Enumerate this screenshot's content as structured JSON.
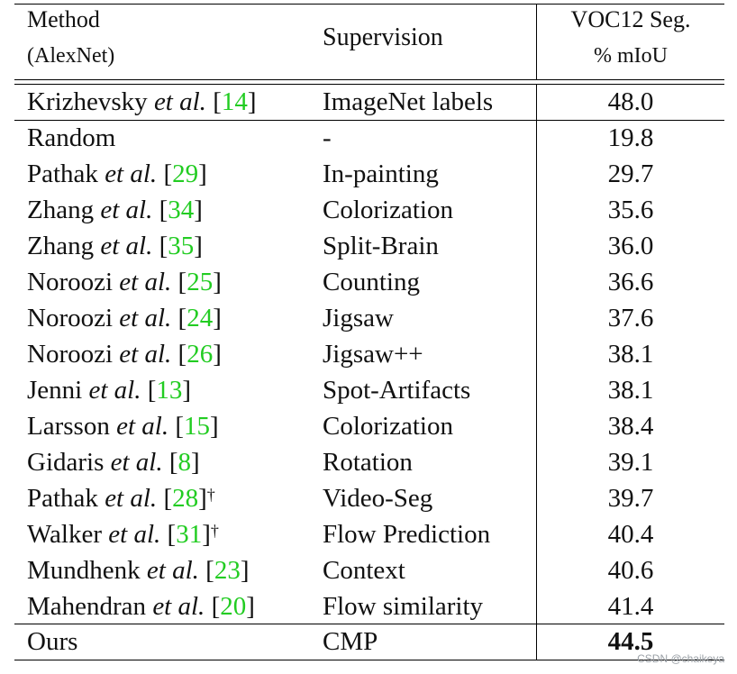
{
  "header": {
    "method": "Method",
    "method_sub": "(AlexNet)",
    "supervision": "Supervision",
    "voc_line1": "VOC12 Seg.",
    "voc_line2": "% mIoU"
  },
  "baseline": {
    "author": "Krizhevsky",
    "etal": "et al.",
    "ref": "14",
    "supervision": "ImageNet labels",
    "miou": "48.0"
  },
  "random_row": {
    "method": "Random",
    "supervision": "-",
    "miou": "19.8"
  },
  "rows": [
    {
      "author": "Pathak",
      "etal": "et al.",
      "ref": "29",
      "dagger": "",
      "supervision": "In-painting",
      "miou": "29.7"
    },
    {
      "author": "Zhang",
      "etal": "et al.",
      "ref": "34",
      "dagger": "",
      "supervision": "Colorization",
      "miou": "35.6"
    },
    {
      "author": "Zhang",
      "etal": "et al.",
      "ref": "35",
      "dagger": "",
      "supervision": "Split-Brain",
      "miou": "36.0"
    },
    {
      "author": "Noroozi",
      "etal": "et al.",
      "ref": "25",
      "dagger": "",
      "supervision": "Counting",
      "miou": "36.6"
    },
    {
      "author": "Noroozi",
      "etal": "et al.",
      "ref": "24",
      "dagger": "",
      "supervision": "Jigsaw",
      "miou": "37.6"
    },
    {
      "author": "Noroozi",
      "etal": "et al.",
      "ref": "26",
      "dagger": "",
      "supervision": "Jigsaw++",
      "miou": "38.1"
    },
    {
      "author": "Jenni",
      "etal": "et al.",
      "ref": "13",
      "dagger": "",
      "supervision": "Spot-Artifacts",
      "miou": "38.1"
    },
    {
      "author": "Larsson",
      "etal": "et al.",
      "ref": "15",
      "dagger": "",
      "supervision": "Colorization",
      "miou": "38.4"
    },
    {
      "author": "Gidaris",
      "etal": "et al.",
      "ref": "8",
      "dagger": "",
      "supervision": "Rotation",
      "miou": "39.1"
    },
    {
      "author": "Pathak",
      "etal": "et al.",
      "ref": "28",
      "dagger": "†",
      "supervision": "Video-Seg",
      "miou": "39.7"
    },
    {
      "author": "Walker",
      "etal": "et al.",
      "ref": "31",
      "dagger": "†",
      "supervision": "Flow Prediction",
      "miou": "40.4"
    },
    {
      "author": "Mundhenk",
      "etal": "et al.",
      "ref": "23",
      "dagger": "",
      "supervision": "Context",
      "miou": "40.6"
    },
    {
      "author": "Mahendran",
      "etal": "et al.",
      "ref": "20",
      "dagger": "",
      "supervision": "Flow similarity",
      "miou": "41.4"
    }
  ],
  "ours": {
    "method": "Ours",
    "supervision": "CMP",
    "miou": "44.5"
  },
  "watermark": "CSDN @chaikeya",
  "colors": {
    "citation": "#22cc22",
    "text": "#111111",
    "rule": "#000000"
  }
}
